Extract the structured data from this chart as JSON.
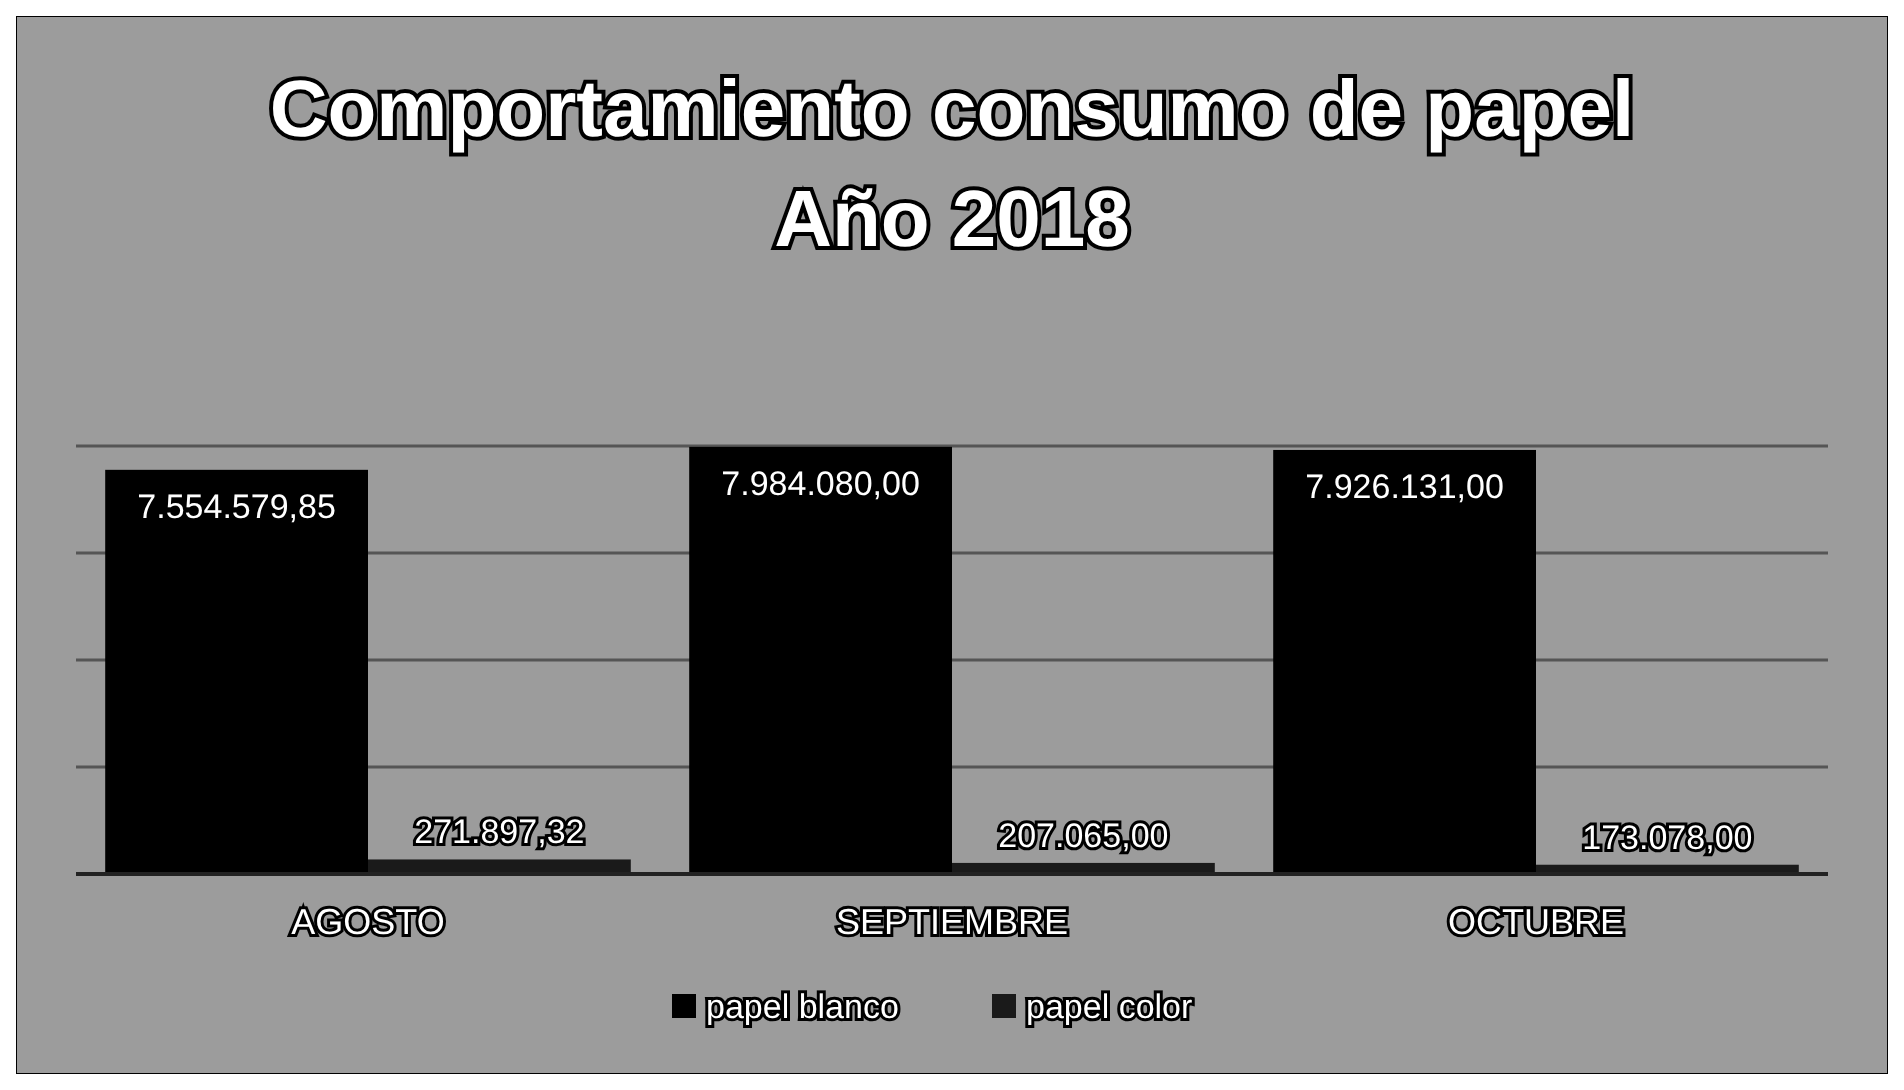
{
  "chart_data": {
    "type": "bar",
    "title": "Comportamiento consumo de papel",
    "subtitle": "Año 2018",
    "categories": [
      "AGOSTO",
      "SEPTIEMBRE",
      "OCTUBRE"
    ],
    "series": [
      {
        "name": "papel blanco",
        "color": "#000000",
        "values": [
          7554579.85,
          7984080,
          7926131
        ],
        "value_labels": [
          "7.554.579,85",
          "7.984.080,00",
          "7.926.131,00"
        ]
      },
      {
        "name": "papel color",
        "color": "#1a1a1a",
        "values": [
          271897.32,
          207065,
          173078
        ],
        "value_labels": [
          "271.897,32",
          "207.065,00",
          "173.078,00"
        ]
      }
    ],
    "ylim": [
      0,
      8000000
    ],
    "yticks": [
      {
        "value": 0,
        "label": null
      },
      {
        "value": 2000000,
        "label": null
      },
      {
        "value": 4000000,
        "label": null
      },
      {
        "value": 6000000,
        "label": null
      },
      {
        "value": 8000000,
        "label": null
      }
    ],
    "tick_labels": "x",
    "grid": "y",
    "legend": "bottom"
  }
}
